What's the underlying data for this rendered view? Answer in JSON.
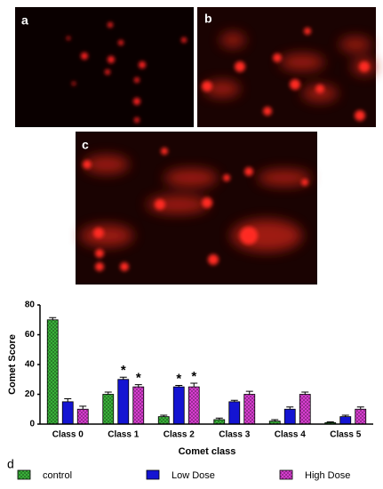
{
  "chart_data": {
    "type": "bar",
    "panel_labels": [
      "a",
      "b",
      "c",
      "d"
    ],
    "xlabel": "Comet class",
    "ylabel": "Comet Score",
    "categories": [
      "Class 0",
      "Class 1",
      "Class 2",
      "Class 3",
      "Class 4",
      "Class 5"
    ],
    "series": [
      {
        "name": "control",
        "color": "#3cb83c",
        "hatch": true,
        "values": [
          70,
          20,
          5,
          3,
          2,
          1
        ],
        "errors": [
          1.5,
          1.5,
          1,
          1,
          1,
          0.5
        ]
      },
      {
        "name": "Low Dose",
        "color": "#1414d2",
        "hatch": false,
        "values": [
          15,
          30,
          25,
          15,
          10,
          5
        ],
        "errors": [
          2,
          1.5,
          1,
          1,
          1.5,
          1
        ]
      },
      {
        "name": "High Dose",
        "color": "#e040d8",
        "hatch": true,
        "values": [
          10,
          25,
          25,
          20,
          20,
          10
        ],
        "errors": [
          2,
          1.5,
          2.5,
          2,
          1.5,
          1.5
        ]
      }
    ],
    "annotations": [
      {
        "label": "*",
        "series": "Low Dose",
        "category": "Class 1"
      },
      {
        "label": "*",
        "series": "High Dose",
        "category": "Class 1"
      },
      {
        "label": "*",
        "series": "Low Dose",
        "category": "Class 2"
      },
      {
        "label": "*",
        "series": "High Dose",
        "category": "Class 2"
      }
    ],
    "ylim": [
      0,
      80
    ],
    "yticks": [
      0,
      20,
      40,
      60,
      80
    ],
    "grid": false
  }
}
